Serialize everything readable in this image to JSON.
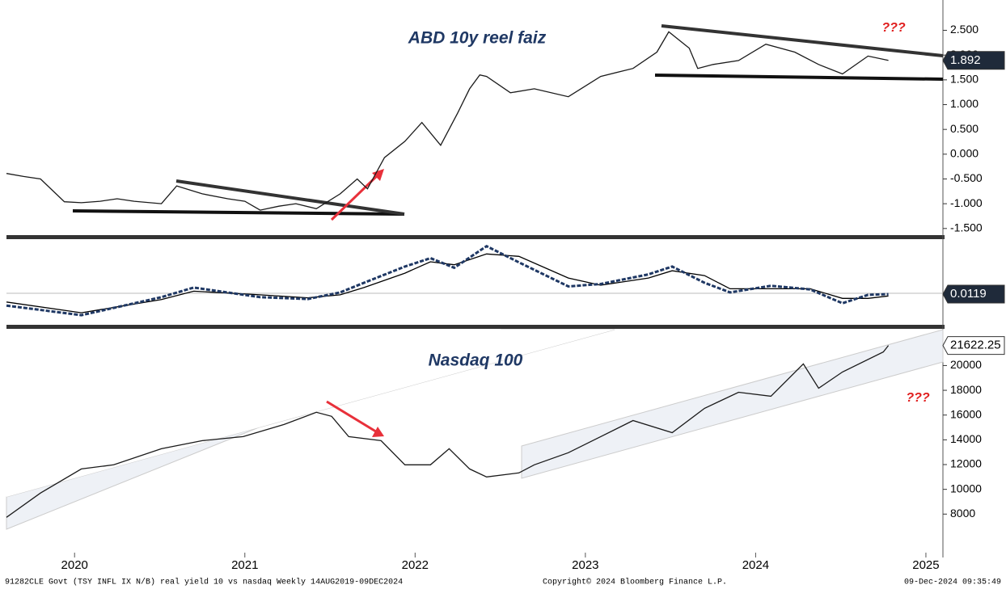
{
  "chart_data": [
    {
      "type": "line",
      "title": "ABD 10y reel faiz",
      "annotation": "???",
      "color": "#1a1a1a",
      "x": [
        2019.6,
        2019.7,
        2019.8,
        2019.94,
        2020.04,
        2020.15,
        2020.25,
        2020.35,
        2020.51,
        2020.6,
        2020.75,
        2020.9,
        2021.0,
        2021.09,
        2021.2,
        2021.3,
        2021.42,
        2021.56,
        2021.66,
        2021.72,
        2021.82,
        2021.94,
        2022.04,
        2022.15,
        2022.25,
        2022.32,
        2022.38,
        2022.42,
        2022.56,
        2022.7,
        2022.9,
        2023.09,
        2023.28,
        2023.42,
        2023.49,
        2023.61,
        2023.66,
        2023.75,
        2023.9,
        2024.06,
        2024.23,
        2024.37,
        2024.51,
        2024.66,
        2024.78
      ],
      "values": [
        -0.39,
        -0.45,
        -0.5,
        -0.96,
        -0.98,
        -0.95,
        -0.9,
        -0.95,
        -1.0,
        -0.64,
        -0.8,
        -0.9,
        -0.95,
        -1.13,
        -1.05,
        -1.0,
        -1.1,
        -0.8,
        -0.5,
        -0.7,
        -0.07,
        0.26,
        0.64,
        0.18,
        0.83,
        1.32,
        1.6,
        1.57,
        1.24,
        1.32,
        1.16,
        1.57,
        1.73,
        2.06,
        2.47,
        2.14,
        1.73,
        1.81,
        1.89,
        2.22,
        2.06,
        1.81,
        1.62,
        1.98,
        1.892
      ],
      "last_value": 1.892,
      "xlim": [
        2019.6,
        2025.1
      ],
      "ylim": [
        -1.65,
        2.9
      ],
      "yticks": [
        {
          "value": -1.5,
          "label": "-1.500"
        },
        {
          "value": -1,
          "label": "-1.000"
        },
        {
          "value": -0.5,
          "label": "-0.500"
        },
        {
          "value": 0,
          "label": "0.000"
        },
        {
          "value": 0.5,
          "label": "0.500"
        },
        {
          "value": 1,
          "label": "1.000"
        },
        {
          "value": 1.5,
          "label": "1.500"
        },
        {
          "value": 2,
          "label": "2.000"
        },
        {
          "value": 2.5,
          "label": "2.500"
        }
      ]
    },
    {
      "type": "line",
      "x": [
        2019.6,
        2020.04,
        2020.51,
        2020.7,
        2021.09,
        2021.37,
        2021.56,
        2021.7,
        2021.94,
        2022.09,
        2022.23,
        2022.42,
        2022.61,
        2022.9,
        2023.09,
        2023.37,
        2023.51,
        2023.7,
        2023.85,
        2024.09,
        2024.32,
        2024.51,
        2024.66,
        2024.78
      ],
      "series": [
        {
          "color": "#1f3864",
          "values": [
            -0.18,
            -0.34,
            -0.04,
            0.12,
            -0.04,
            -0.07,
            0.04,
            0.2,
            0.47,
            0.61,
            0.45,
            0.81,
            0.54,
            0.14,
            0.18,
            0.34,
            0.47,
            0.2,
            0.04,
            0.15,
            0.09,
            -0.14,
            0.0,
            0.0119
          ]
        },
        {
          "color": "#000000",
          "values": [
            -0.12,
            -0.3,
            -0.08,
            0.06,
            0.0,
            -0.05,
            0.0,
            0.12,
            0.36,
            0.55,
            0.5,
            0.68,
            0.64,
            0.28,
            0.16,
            0.28,
            0.4,
            0.32,
            0.1,
            0.1,
            0.1,
            -0.06,
            -0.06,
            -0.02
          ]
        }
      ],
      "last_value": 0.0119,
      "xlim": [
        2019.6,
        2025.1
      ],
      "ylim": [
        -0.5,
        0.9
      ]
    },
    {
      "type": "line",
      "title": "Nasdaq 100",
      "annotation": "???",
      "color": "#1a1a1a",
      "x": [
        2019.6,
        2019.8,
        2020.04,
        2020.23,
        2020.51,
        2020.75,
        2020.99,
        2021.23,
        2021.42,
        2021.51,
        2021.61,
        2021.8,
        2021.94,
        2022.09,
        2022.2,
        2022.32,
        2022.42,
        2022.61,
        2022.7,
        2022.9,
        2023.09,
        2023.28,
        2023.51,
        2023.7,
        2023.9,
        2024.09,
        2024.28,
        2024.37,
        2024.51,
        2024.75,
        2024.78
      ],
      "values": [
        7740,
        9700,
        11650,
        11980,
        13280,
        13930,
        14260,
        15240,
        16220,
        15900,
        14260,
        13930,
        11980,
        11980,
        13280,
        11650,
        11000,
        11330,
        11980,
        12960,
        14260,
        15560,
        14580,
        16540,
        17840,
        17520,
        20130,
        18170,
        19480,
        21100,
        21622.25
      ],
      "last_value": 21622.25,
      "xlim": [
        2019.6,
        2025.1
      ],
      "ylim": [
        5800,
        22900
      ],
      "yticks": [
        8000,
        10000,
        12000,
        14000,
        16000,
        18000,
        20000
      ],
      "xticks": [
        2020,
        2021,
        2022,
        2023,
        2024,
        2025
      ]
    }
  ],
  "footer": {
    "left": "91282CLE Govt (TSY INFL IX N/B) real yield 10 vs nasdaq  Weekly 14AUG2019-09DEC2024",
    "center": "Copyright© 2024 Bloomberg Finance L.P.",
    "right": "09-Dec-2024 09:35:49"
  }
}
